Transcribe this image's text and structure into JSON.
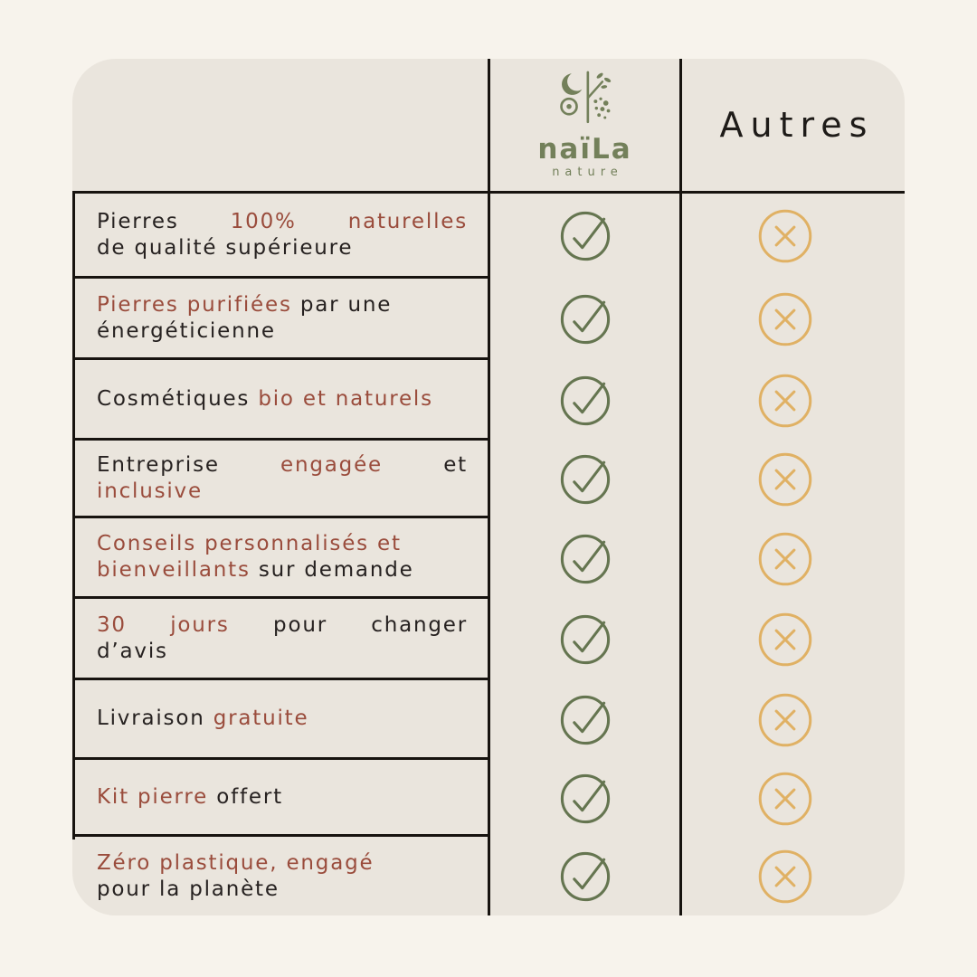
{
  "colors": {
    "page_bg": "#f7f3ec",
    "card_bg": "#eae5dd",
    "table_line": "#17130f",
    "text": "#262120",
    "accent_red": "#9a4c3c",
    "brand_green": "#73805a",
    "check_green": "#657550",
    "cross_gold": "#e0b164"
  },
  "header": {
    "brand_name": "naïLa",
    "brand_tagline": "nature",
    "brand_logo_icon": "moon-sun-plant-icon",
    "competitor_label": "Autres"
  },
  "legend": {
    "brand_value_icon": "check-icon",
    "competitor_value_icon": "cross-icon"
  },
  "rows": [
    {
      "brand_value": "yes",
      "competitor_value": "no",
      "lines": [
        {
          "justify": true,
          "segments": [
            {
              "text": "Pierres ",
              "accent": false
            },
            {
              "text": "100% naturelles",
              "accent": true
            }
          ]
        },
        {
          "justify": false,
          "segments": [
            {
              "text": "de qualité supérieure",
              "accent": false
            }
          ]
        }
      ]
    },
    {
      "brand_value": "yes",
      "competitor_value": "no",
      "lines": [
        {
          "justify": false,
          "segments": [
            {
              "text": "Pierres purifiées ",
              "accent": true
            },
            {
              "text": "par une",
              "accent": false
            }
          ]
        },
        {
          "justify": false,
          "segments": [
            {
              "text": "énergéticienne",
              "accent": false
            }
          ]
        }
      ]
    },
    {
      "brand_value": "yes",
      "competitor_value": "no",
      "lines": [
        {
          "justify": false,
          "segments": [
            {
              "text": "Cosmétiques ",
              "accent": false
            },
            {
              "text": "bio et naturels",
              "accent": true
            }
          ]
        }
      ]
    },
    {
      "brand_value": "yes",
      "competitor_value": "no",
      "lines": [
        {
          "justify": true,
          "segments": [
            {
              "text": "Entreprise ",
              "accent": false
            },
            {
              "text": "engagée ",
              "accent": true
            },
            {
              "text": "et",
              "accent": false
            }
          ]
        },
        {
          "justify": false,
          "segments": [
            {
              "text": "inclusive",
              "accent": true
            }
          ]
        }
      ]
    },
    {
      "brand_value": "yes",
      "competitor_value": "no",
      "lines": [
        {
          "justify": false,
          "segments": [
            {
              "text": "Conseils personnalisés et",
              "accent": true
            }
          ]
        },
        {
          "justify": false,
          "segments": [
            {
              "text": "bienveillants ",
              "accent": true
            },
            {
              "text": "sur demande",
              "accent": false
            }
          ]
        }
      ]
    },
    {
      "brand_value": "yes",
      "competitor_value": "no",
      "lines": [
        {
          "justify": true,
          "segments": [
            {
              "text": "30 jours ",
              "accent": true
            },
            {
              "text": "pour changer",
              "accent": false
            }
          ]
        },
        {
          "justify": false,
          "segments": [
            {
              "text": "d’avis",
              "accent": false
            }
          ]
        }
      ]
    },
    {
      "brand_value": "yes",
      "competitor_value": "no",
      "lines": [
        {
          "justify": false,
          "segments": [
            {
              "text": "Livraison ",
              "accent": false
            },
            {
              "text": "gratuite",
              "accent": true
            }
          ]
        }
      ]
    },
    {
      "brand_value": "yes",
      "competitor_value": "no",
      "lines": [
        {
          "justify": false,
          "segments": [
            {
              "text": "Kit pierre ",
              "accent": true
            },
            {
              "text": "offert",
              "accent": false
            }
          ]
        }
      ]
    },
    {
      "brand_value": "yes",
      "competitor_value": "no",
      "lines": [
        {
          "justify": false,
          "segments": [
            {
              "text": "Zéro plastique, engagé",
              "accent": true
            }
          ]
        },
        {
          "justify": false,
          "segments": [
            {
              "text": "pour la planète",
              "accent": false
            }
          ]
        }
      ]
    }
  ]
}
